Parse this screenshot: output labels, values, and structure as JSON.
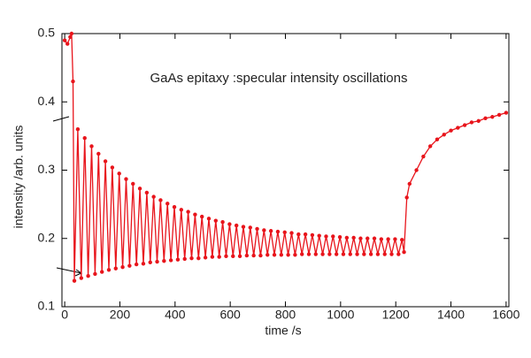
{
  "chart_data": {
    "type": "line",
    "annotation": "GaAs epitaxy :specular intensity oscillations",
    "x_label": "time /s",
    "y_label": "intensity /arb. units",
    "xlim": [
      -10,
      1610
    ],
    "ylim": [
      0.1,
      0.5
    ],
    "xticks": [
      0,
      200,
      400,
      600,
      800,
      1000,
      1200,
      1400,
      1600
    ],
    "yticks": [
      0.1,
      0.2,
      0.3,
      0.4,
      0.5
    ],
    "series": [
      {
        "color": "#e8141b",
        "x": [
          0,
          10,
          20,
          25,
          30,
          35,
          47.5,
          60,
          72.5,
          85,
          97.5,
          110,
          122.5,
          135,
          147.5,
          160,
          172.5,
          185,
          197.5,
          210,
          222.5,
          235,
          247.5,
          260,
          272.5,
          285,
          297.5,
          310,
          322.5,
          335,
          347.5,
          360,
          372.5,
          385,
          397.5,
          410,
          422.5,
          435,
          447.5,
          460,
          472.5,
          485,
          497.5,
          510,
          522.5,
          535,
          547.5,
          560,
          572.5,
          585,
          597.5,
          610,
          622.5,
          635,
          647.5,
          660,
          672.5,
          685,
          697.5,
          710,
          722.5,
          735,
          747.5,
          760,
          772.5,
          785,
          797.5,
          810,
          822.5,
          835,
          847.5,
          860,
          872.5,
          885,
          897.5,
          910,
          922.5,
          935,
          947.5,
          960,
          972.5,
          985,
          997.5,
          1010,
          1022.5,
          1035,
          1047.5,
          1060,
          1072.5,
          1085,
          1097.5,
          1110,
          1122.5,
          1135,
          1147.5,
          1160,
          1172.5,
          1185,
          1197.5,
          1210,
          1222.5,
          1230,
          1240,
          1250,
          1275,
          1300,
          1325,
          1350,
          1375,
          1400,
          1425,
          1450,
          1475,
          1500,
          1525,
          1550,
          1575,
          1600
        ],
        "values": [
          0.49,
          0.485,
          0.495,
          0.5,
          0.43,
          0.138,
          0.36,
          0.142,
          0.347,
          0.145,
          0.335,
          0.148,
          0.324,
          0.151,
          0.313,
          0.154,
          0.304,
          0.156,
          0.295,
          0.158,
          0.287,
          0.16,
          0.28,
          0.162,
          0.273,
          0.163,
          0.267,
          0.165,
          0.261,
          0.166,
          0.256,
          0.167,
          0.251,
          0.168,
          0.246,
          0.169,
          0.242,
          0.17,
          0.239,
          0.171,
          0.235,
          0.171,
          0.232,
          0.172,
          0.229,
          0.173,
          0.226,
          0.173,
          0.224,
          0.174,
          0.221,
          0.174,
          0.219,
          0.174,
          0.217,
          0.175,
          0.216,
          0.175,
          0.214,
          0.175,
          0.212,
          0.176,
          0.211,
          0.176,
          0.21,
          0.176,
          0.209,
          0.176,
          0.208,
          0.176,
          0.206,
          0.177,
          0.206,
          0.177,
          0.205,
          0.177,
          0.204,
          0.177,
          0.203,
          0.177,
          0.203,
          0.177,
          0.202,
          0.177,
          0.201,
          0.177,
          0.201,
          0.177,
          0.2,
          0.177,
          0.2,
          0.177,
          0.2,
          0.177,
          0.199,
          0.177,
          0.199,
          0.177,
          0.199,
          0.177,
          0.198,
          0.18,
          0.26,
          0.28,
          0.3,
          0.32,
          0.335,
          0.345,
          0.352,
          0.358,
          0.362,
          0.366,
          0.37,
          0.372,
          0.376,
          0.378,
          0.381,
          0.384
        ]
      }
    ]
  }
}
